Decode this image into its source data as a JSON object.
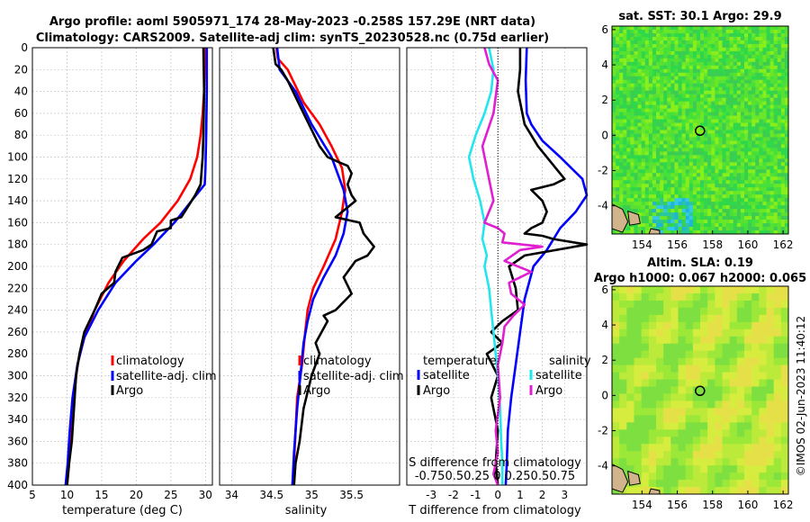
{
  "header": {
    "line1": "Argo profile: aoml 5905971_174 28-May-2023 -0.258S 157.29E (NRT data)",
    "line2": "Climatology: CARS2009. Satellite-adj clim: synTS_20230528.nc (0.75d earlier)"
  },
  "colors": {
    "climatology": "#ff0000",
    "satellite": "#0000ff",
    "argo": "#000000",
    "sal_satellite": "#22e6ee",
    "sal_argo": "#e020d0",
    "grid": "#c8c8c8"
  },
  "chart_data": [
    {
      "type": "line",
      "name": "temperature-profile",
      "xlabel": "temperature (deg C)",
      "ylabel": "",
      "xlim": [
        5,
        31
      ],
      "ylim": [
        400,
        0
      ],
      "xticks": [
        5,
        10,
        15,
        20,
        25,
        30
      ],
      "yticks": [
        0,
        20,
        40,
        60,
        80,
        100,
        120,
        140,
        160,
        180,
        200,
        220,
        240,
        260,
        280,
        300,
        320,
        340,
        360,
        380,
        400
      ],
      "grid": true,
      "legend_position": "lower-right",
      "series": [
        {
          "name": "climatology",
          "color": "#ff0000",
          "x": [
            29.9,
            29.8,
            29.6,
            29.3,
            28.8,
            27.8,
            26.0,
            23.5,
            21.0,
            18.2,
            16.0,
            14.0,
            12.5,
            11.5,
            11.0,
            10.6,
            10.3,
            10.0
          ],
          "y": [
            0,
            40,
            60,
            80,
            100,
            120,
            140,
            160,
            175,
            195,
            215,
            240,
            265,
            290,
            320,
            350,
            380,
            400
          ]
        },
        {
          "name": "satellite-adj. clim",
          "color": "#0000ff",
          "x": [
            30.2,
            30.2,
            30.1,
            30.0,
            29.9,
            28.0,
            25.5,
            22.5,
            20.0,
            17.0,
            14.5,
            12.5,
            11.5,
            10.8,
            10.4,
            10.1,
            9.8
          ],
          "y": [
            0,
            40,
            80,
            110,
            125,
            140,
            160,
            180,
            195,
            215,
            240,
            265,
            290,
            320,
            350,
            380,
            400
          ]
        },
        {
          "name": "Argo",
          "color": "#000000",
          "x": [
            29.7,
            29.8,
            29.7,
            29.6,
            29.3,
            28.5,
            27.5,
            26.5,
            25.0,
            25.0,
            23.0,
            22.2,
            21.0,
            18.0,
            17.0,
            16.8,
            15.0,
            14.0,
            12.5,
            11.8,
            11.3,
            11.0,
            10.7,
            10.3,
            10.0
          ],
          "y": [
            0,
            40,
            80,
            100,
            125,
            135,
            145,
            155,
            158,
            165,
            168,
            180,
            185,
            192,
            205,
            215,
            225,
            240,
            260,
            280,
            300,
            330,
            360,
            380,
            400
          ]
        }
      ]
    },
    {
      "type": "line",
      "name": "salinity-profile",
      "xlabel": "salinity",
      "ylabel": "",
      "xlim": [
        33.85,
        36.1
      ],
      "ylim": [
        400,
        0
      ],
      "xticks": [
        34,
        34.5,
        35,
        35.5
      ],
      "grid": true,
      "legend_position": "lower-right",
      "series": [
        {
          "name": "climatology",
          "color": "#ff0000",
          "x": [
            34.56,
            34.58,
            34.7,
            34.9,
            35.1,
            35.25,
            35.38,
            35.42,
            35.38,
            35.3,
            35.15,
            35.02,
            34.95,
            34.92,
            34.88,
            34.82,
            34.8,
            34.78,
            34.76
          ],
          "y": [
            0,
            10,
            20,
            50,
            70,
            90,
            110,
            130,
            150,
            175,
            200,
            220,
            240,
            260,
            290,
            320,
            350,
            380,
            400
          ]
        },
        {
          "name": "satellite-adj. clim",
          "color": "#0000ff",
          "x": [
            34.57,
            34.6,
            34.8,
            35.0,
            35.25,
            35.4,
            35.45,
            35.4,
            35.3,
            35.15,
            35.02,
            34.95,
            34.9,
            34.86,
            34.82,
            34.78,
            34.76
          ],
          "y": [
            0,
            20,
            40,
            70,
            100,
            130,
            150,
            170,
            190,
            210,
            230,
            250,
            270,
            300,
            330,
            370,
            400
          ]
        },
        {
          "name": "Argo",
          "color": "#000000",
          "x": [
            34.52,
            34.55,
            34.62,
            34.7,
            34.9,
            35.1,
            35.2,
            35.35,
            35.45,
            35.5,
            35.45,
            35.5,
            35.55,
            35.3,
            35.6,
            35.65,
            35.78,
            35.7,
            35.55,
            35.4,
            35.5,
            35.3,
            35.15,
            35.2,
            35.05,
            35.1,
            35.0,
            34.9,
            34.85,
            34.8,
            34.78
          ],
          "y": [
            0,
            15,
            20,
            30,
            60,
            90,
            100,
            105,
            108,
            115,
            125,
            135,
            140,
            155,
            160,
            170,
            182,
            190,
            195,
            210,
            225,
            240,
            245,
            250,
            270,
            280,
            300,
            330,
            360,
            380,
            400
          ]
        }
      ]
    },
    {
      "type": "line",
      "name": "difference-profile",
      "xlabel": "T difference from climatology",
      "xlabel_top": "S difference from climatology",
      "xlim": [
        -4.1,
        4.0
      ],
      "ylim": [
        400,
        0
      ],
      "xticks": [
        "-3",
        "-2",
        "-1",
        "0",
        "1",
        "2",
        "3"
      ],
      "top_ticks": "-0.750.50.25  0  0.250.50.75",
      "grid": true,
      "legend_temperature_title": "temperature",
      "legend_salinity_title": "salinity",
      "series": [
        {
          "name": "satellite",
          "group": "temperature",
          "color": "#0000ff",
          "x": [
            1.3,
            1.25,
            1.3,
            1.5,
            2.0,
            2.8,
            3.8,
            4.0,
            3.5,
            2.8,
            2.2,
            1.6,
            1.2,
            1.0,
            0.8,
            0.6,
            0.45,
            0.4,
            0.35
          ],
          "y": [
            0,
            30,
            60,
            70,
            85,
            100,
            120,
            135,
            150,
            165,
            185,
            200,
            230,
            260,
            290,
            320,
            350,
            380,
            400
          ]
        },
        {
          "name": "Argo",
          "group": "temperature",
          "color": "#000000",
          "x": [
            1.0,
            1.0,
            0.9,
            1.2,
            1.8,
            2.6,
            3.0,
            2.5,
            1.5,
            2.0,
            2.2,
            2.0,
            1.5,
            1.2,
            2.0,
            2.5,
            4.0,
            1.2,
            0.5,
            0.8,
            0.9,
            0.2,
            -0.3,
            0.2,
            -0.5,
            0.0,
            -0.3,
            0.0,
            -0.1,
            0.0
          ],
          "y": [
            0,
            20,
            40,
            70,
            90,
            110,
            120,
            125,
            130,
            140,
            150,
            160,
            165,
            170,
            172,
            175,
            180,
            190,
            200,
            220,
            240,
            250,
            260,
            270,
            280,
            300,
            320,
            350,
            380,
            400
          ]
        },
        {
          "name": "satellite",
          "group": "salinity",
          "color": "#22e6ee",
          "x": [
            -0.4,
            -0.2,
            -0.3,
            -0.6,
            -1.0,
            -1.3,
            -1.1,
            -0.8,
            -0.6,
            -0.7,
            -0.5,
            -0.6,
            -0.4,
            -0.3,
            -0.2,
            -0.1,
            0.0,
            0.1,
            0.15,
            0.2,
            0.2
          ],
          "y": [
            0,
            20,
            40,
            60,
            80,
            100,
            120,
            140,
            160,
            175,
            190,
            200,
            220,
            240,
            260,
            280,
            300,
            330,
            360,
            380,
            400
          ]
        },
        {
          "name": "Argo",
          "group": "salinity",
          "color": "#e020d0",
          "x": [
            -0.6,
            -0.4,
            0.0,
            -0.2,
            -0.7,
            -0.5,
            -0.3,
            -0.2,
            -0.6,
            0.0,
            0.3,
            0.2,
            2.0,
            1.0,
            0.3,
            1.5,
            0.5,
            0.6,
            1.2,
            0.7,
            0.3,
            0.2,
            0.0,
            0.1,
            -0.1,
            0.0,
            -0.2,
            0.0
          ],
          "y": [
            0,
            15,
            30,
            60,
            90,
            110,
            130,
            140,
            160,
            165,
            170,
            178,
            182,
            185,
            195,
            205,
            215,
            225,
            235,
            245,
            255,
            270,
            290,
            320,
            350,
            370,
            390,
            400
          ]
        }
      ]
    },
    {
      "type": "heatmap",
      "name": "sat-sst-map",
      "title": "sat. SST: 30.1 Argo: 29.9",
      "xlim": [
        152.3,
        162.3
      ],
      "ylim": [
        -5.6,
        6.2
      ],
      "xticks": [
        154,
        156,
        158,
        160,
        162
      ],
      "yticks": [
        -4,
        -2,
        0,
        2,
        4,
        6
      ],
      "marker": {
        "lon": 157.29,
        "lat": 0.26
      }
    },
    {
      "type": "heatmap",
      "name": "altim-sla-map",
      "title_line1": "Altim. SLA: 0.19",
      "title_line2": "Argo h1000: 0.067 h2000: 0.065",
      "xlim": [
        152.3,
        162.3
      ],
      "ylim": [
        -5.6,
        6.2
      ],
      "xticks": [
        154,
        156,
        158,
        160,
        162
      ],
      "yticks": [
        -4,
        -2,
        0,
        2,
        4,
        6
      ],
      "marker": {
        "lon": 157.29,
        "lat": 0.26
      }
    }
  ],
  "legend": {
    "climatology": "climatology",
    "satellite_adj": "satellite-adj. clim",
    "argo": "Argo",
    "satellite": "satellite"
  },
  "side_text": "©IMOS 02-Jun-2023 11:40:12"
}
